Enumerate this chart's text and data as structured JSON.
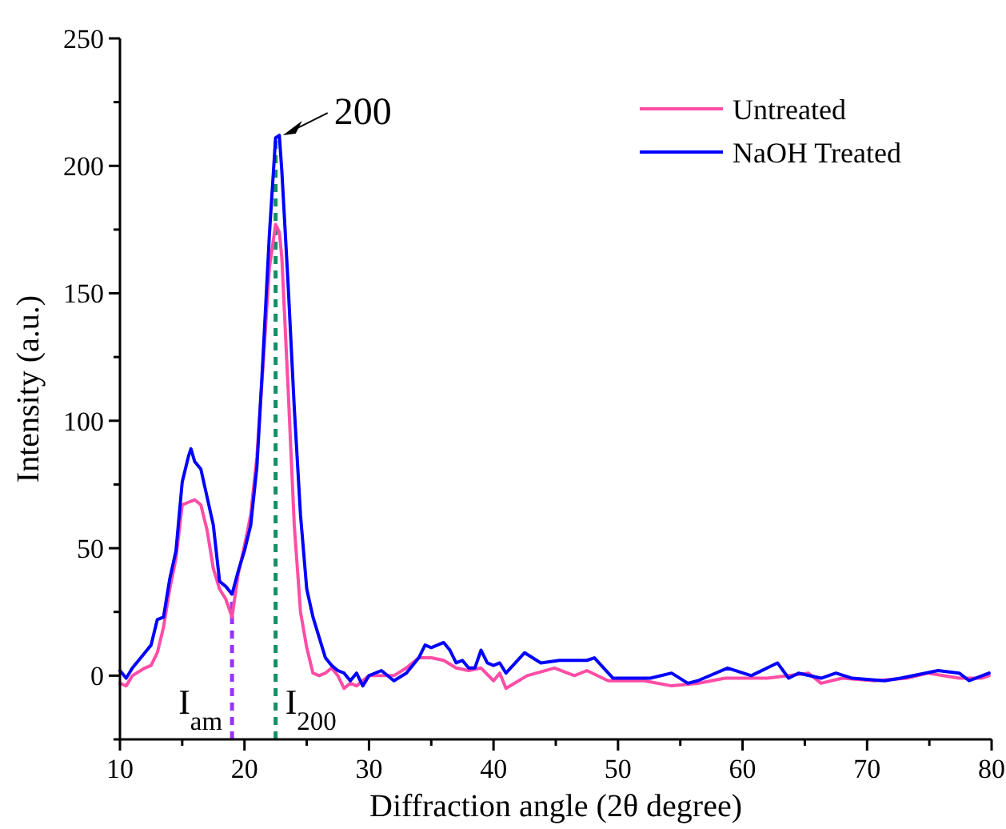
{
  "chart_data": {
    "type": "line",
    "xlabel": "Diffraction angle (2θ degree)",
    "ylabel": "Intensity (a.u.)",
    "xlim": [
      10,
      80
    ],
    "ylim": [
      -25,
      250
    ],
    "xticks": [
      10,
      {
        "value": 15,
        "label": null
      },
      20,
      {
        "value": 25,
        "label": null
      },
      30,
      {
        "value": 35,
        "label": null
      },
      40,
      {
        "value": 45,
        "label": null
      },
      50,
      {
        "value": 55,
        "label": null
      },
      60,
      {
        "value": 65,
        "label": null
      },
      70,
      {
        "value": 75,
        "label": null
      },
      80
    ],
    "yticks": [
      {
        "value": -25,
        "label": null
      },
      0,
      {
        "value": 25,
        "label": null
      },
      50,
      {
        "value": 75,
        "label": null
      },
      100,
      {
        "value": 125,
        "label": null
      },
      150,
      {
        "value": 175,
        "label": null
      },
      200,
      {
        "value": 225,
        "label": null
      },
      250
    ],
    "legend": "top right",
    "grid": false,
    "line_style": "solid",
    "marker": "none",
    "series": [
      {
        "name": "Untreated",
        "color": "#ff4da6",
        "x": [
          10,
          10.5,
          11,
          12,
          12.5,
          13,
          13.5,
          14,
          14.5,
          15,
          15.5,
          16,
          16.5,
          17,
          17.5,
          18,
          18.5,
          19,
          19.5,
          20,
          20.5,
          21,
          21.5,
          22,
          22.5,
          22.8,
          23,
          23.5,
          24,
          24.5,
          25,
          25.5,
          26,
          26.5,
          27,
          27.5,
          28,
          28.5,
          29,
          30,
          31,
          32,
          33,
          34,
          35,
          36,
          37,
          38,
          39,
          40,
          40.5,
          41,
          42.7,
          44.9,
          46.5,
          47.5,
          49.2,
          52.1,
          54.3,
          56.4,
          58.6,
          62,
          65.3,
          66.3,
          68,
          70.6,
          73.2,
          74.9,
          77.4,
          79.2,
          79.8
        ],
        "values": [
          -3,
          -4,
          0,
          3,
          4,
          9,
          19,
          34,
          46,
          67,
          68,
          69,
          67,
          57,
          42,
          34,
          30,
          23,
          40,
          51,
          63,
          86,
          122,
          160,
          177,
          174,
          164,
          113,
          59,
          25,
          11,
          1,
          0,
          1,
          3,
          0,
          -5,
          -3,
          -4,
          0,
          0,
          0,
          3,
          7,
          7,
          6,
          3,
          2,
          3,
          -2,
          1,
          -5,
          0,
          3,
          0,
          2,
          -2,
          -2,
          -4,
          -3,
          -1,
          -1,
          1,
          -3,
          -1,
          -2,
          -1,
          1,
          -1,
          -1,
          0
        ]
      },
      {
        "name": "NaOH Treated",
        "color": "#0000ff",
        "x": [
          10,
          10.5,
          11,
          12,
          12.5,
          13,
          13.5,
          14,
          14.5,
          15,
          15.5,
          15.7,
          16,
          16.5,
          17,
          17.5,
          18,
          18.5,
          19,
          19.5,
          20,
          20.5,
          21,
          21.5,
          22,
          22.5,
          22.8,
          23,
          23.5,
          24,
          24.5,
          25,
          25.5,
          26,
          26.5,
          27,
          27.5,
          28,
          28.5,
          29,
          29.5,
          30,
          31,
          32,
          33,
          34,
          34.5,
          35,
          36,
          36.5,
          37,
          37.5,
          38,
          38.5,
          39,
          39.5,
          40,
          40.5,
          41,
          42.5,
          43.8,
          45.3,
          47.5,
          48.1,
          49.6,
          52.6,
          54.3,
          55.6,
          56.4,
          58.8,
          60.7,
          62.8,
          63.7,
          64.5,
          66.3,
          67.5,
          68.8,
          71.4,
          72.7,
          75.7,
          77.4,
          78.2,
          79.8
        ],
        "values": [
          2,
          -1,
          3,
          9,
          12,
          22,
          23,
          38,
          49,
          76,
          86,
          89,
          84,
          81,
          70,
          59,
          37,
          35,
          32,
          41,
          49,
          59,
          82,
          126,
          173,
          211,
          212,
          198,
          154,
          105,
          63,
          34,
          23,
          15,
          7,
          4,
          2,
          1,
          -2,
          1,
          -4,
          0,
          2,
          -2,
          1,
          7,
          12,
          11,
          13,
          10,
          5,
          6,
          3,
          3,
          10,
          5,
          4,
          5,
          1,
          9,
          5,
          6,
          6,
          7,
          -1,
          -1,
          1,
          -3,
          -2,
          3,
          0,
          5,
          -1,
          1,
          -1,
          1,
          -1,
          -2,
          -1,
          2,
          1,
          -2,
          1
        ]
      }
    ],
    "ref_lines": [
      {
        "axis": "x",
        "value": 19,
        "label": "I$_{am}$",
        "color": "#9933ff",
        "line_style": "dashed"
      },
      {
        "axis": "x",
        "value": 22.5,
        "label": "I$_{200}$",
        "color": "#119066",
        "line_style": "dashed"
      }
    ],
    "annotations": [
      {
        "text": "200",
        "x": 22.7,
        "y": 212
      }
    ]
  }
}
